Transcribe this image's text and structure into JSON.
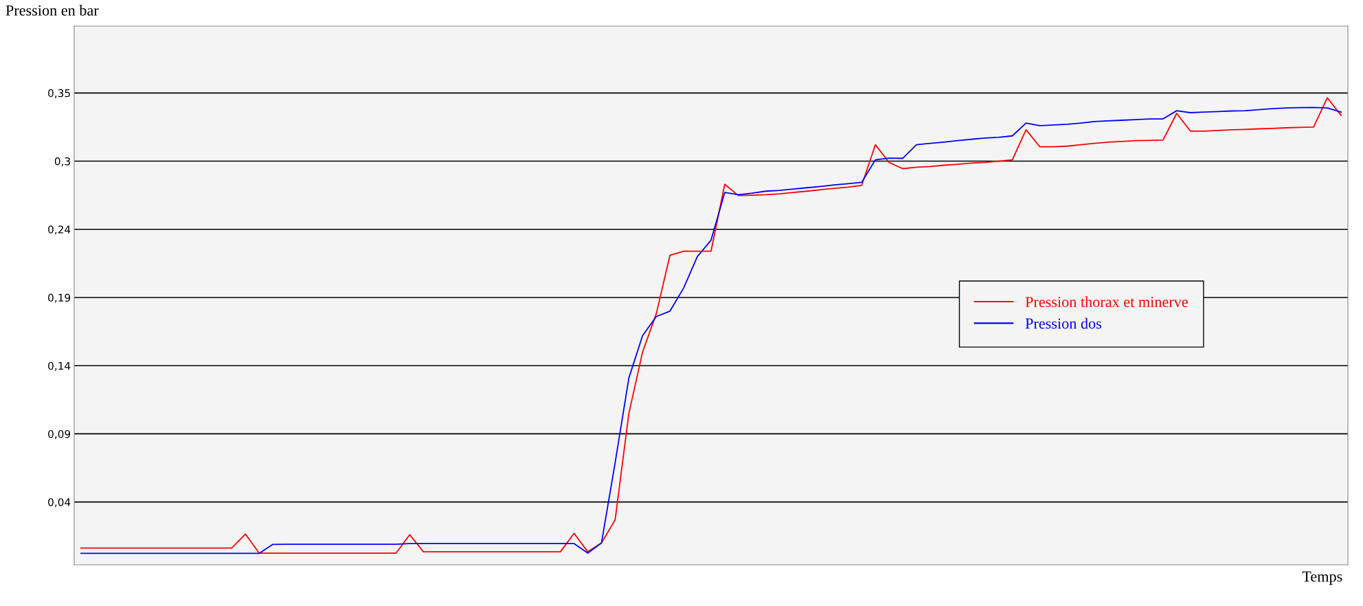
{
  "chart_data": {
    "type": "line",
    "xlabel": "Temps",
    "ylabel": "Pression en bar",
    "categories": [
      null,
      null,
      null,
      null,
      null,
      null,
      null,
      null,
      null,
      null,
      null,
      null,
      null,
      null,
      null,
      null,
      null,
      null,
      null,
      null,
      null,
      null,
      null,
      null,
      null,
      null,
      null,
      null,
      null,
      null,
      null,
      null,
      null,
      null,
      null,
      null,
      null,
      null,
      null,
      null,
      null,
      null,
      null,
      null,
      null,
      null,
      null,
      null,
      null,
      null,
      null,
      null,
      null,
      null,
      null,
      null,
      null,
      null,
      null,
      null,
      null,
      null,
      null,
      null,
      null,
      null,
      null,
      null,
      null,
      null,
      null,
      null,
      null,
      null,
      null,
      null,
      null,
      null,
      null,
      null,
      null,
      null,
      null,
      null,
      null,
      null,
      null,
      null,
      null,
      null,
      null,
      null,
      null
    ],
    "series": [
      {
        "name": "Pression thorax et minerve",
        "color": "#ff0000",
        "values": [
          0.0015,
          0.0015,
          0.0015,
          0.0015,
          0.0015,
          0.0015,
          0.0015,
          0.0015,
          0.0015,
          0.0015,
          0.0015,
          0.0015,
          0.012,
          -0.0024,
          -0.0024,
          -0.0024,
          -0.0024,
          -0.0024,
          -0.0024,
          -0.0024,
          -0.0024,
          -0.0024,
          -0.0024,
          -0.0024,
          0.0115,
          -0.0014,
          -0.0014,
          -0.0014,
          -0.0014,
          -0.0014,
          -0.0014,
          -0.0014,
          -0.0014,
          -0.0014,
          -0.0014,
          -0.0014,
          0.0125,
          -0.0014,
          0.0053,
          0.0228,
          0.1032,
          0.1495,
          0.1783,
          0.2226,
          0.2257,
          0.2257,
          0.2257,
          0.2762,
          0.2677,
          0.268,
          0.2683,
          0.269,
          0.27,
          0.271,
          0.2721,
          0.2731,
          0.2741,
          0.2754,
          0.3061,
          0.2927,
          0.288,
          0.2891,
          0.2896,
          0.2906,
          0.2913,
          0.2922,
          0.2927,
          0.2937,
          0.2947,
          0.3174,
          0.3046,
          0.3046,
          0.305,
          0.3061,
          0.3071,
          0.3081,
          0.3086,
          0.3092,
          0.3094,
          0.3096,
          0.3298,
          0.3164,
          0.3164,
          0.3169,
          0.3174,
          0.3177,
          0.3181,
          0.3184,
          0.3189,
          0.3192,
          0.3195,
          0.3416,
          0.3283
        ]
      },
      {
        "name": "Pression dos",
        "color": "#0000ff",
        "values": [
          -0.0026,
          -0.0026,
          -0.0026,
          -0.0026,
          -0.0026,
          -0.0026,
          -0.0026,
          -0.0026,
          -0.0026,
          -0.0026,
          -0.0026,
          -0.0026,
          -0.0026,
          -0.0026,
          0.0042,
          0.0043,
          0.0043,
          0.0043,
          0.0043,
          0.0043,
          0.0043,
          0.0043,
          0.0043,
          0.0043,
          0.0048,
          0.0048,
          0.0048,
          0.0048,
          0.0048,
          0.0048,
          0.0048,
          0.0048,
          0.0048,
          0.0048,
          0.0048,
          0.0048,
          0.0048,
          -0.0024,
          0.0053,
          0.0661,
          0.1299,
          0.1619,
          0.1763,
          0.1804,
          0.1979,
          0.2216,
          0.234,
          0.27,
          0.2684,
          0.2695,
          0.271,
          0.2716,
          0.2726,
          0.2736,
          0.2746,
          0.2757,
          0.2767,
          0.2777,
          0.2947,
          0.296,
          0.2958,
          0.3061,
          0.3071,
          0.3081,
          0.3092,
          0.3102,
          0.3112,
          0.3117,
          0.3128,
          0.3225,
          0.3205,
          0.321,
          0.3215,
          0.3225,
          0.3236,
          0.3241,
          0.3246,
          0.3251,
          0.3256,
          0.3256,
          0.3318,
          0.3303,
          0.3308,
          0.3311,
          0.3316,
          0.3318,
          0.3326,
          0.3334,
          0.3339,
          0.3341,
          0.3343,
          0.3339,
          0.3308
        ]
      }
    ],
    "ylim": [
      -0.0112,
      0.3957
    ],
    "yticks": [
      {
        "value": 0.0362,
        "label": "0,04"
      },
      {
        "value": 0.0877,
        "label": "0,09"
      },
      {
        "value": 0.1392,
        "label": "0,14"
      },
      {
        "value": 0.1907,
        "label": "0,19"
      },
      {
        "value": 0.2422,
        "label": "0,24"
      },
      {
        "value": 0.2937,
        "label": "0,3"
      },
      {
        "value": 0.3452,
        "label": "0,35"
      }
    ],
    "tick_labels": "y",
    "grid": "y",
    "legend": "right",
    "marker": "none",
    "line_style": "solid"
  }
}
